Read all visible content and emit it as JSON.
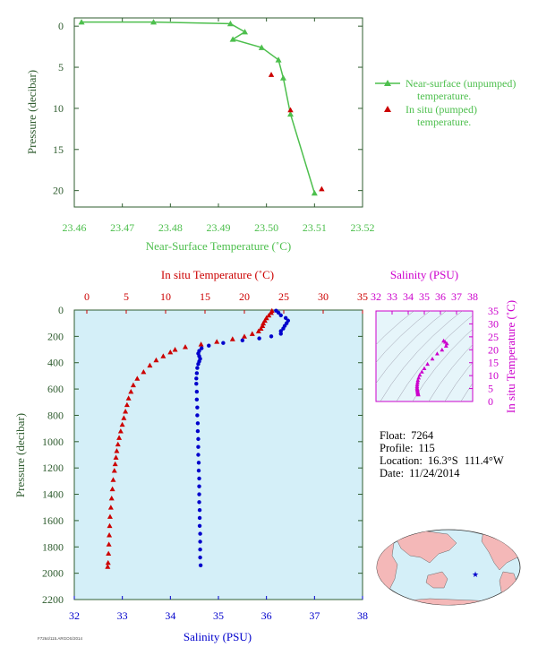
{
  "colors": {
    "green_axis": "#2f5c2f",
    "green_line": "#4dbf4d",
    "red": "#cc0000",
    "blue": "#0000cc",
    "magenta": "#cc00cc",
    "panel_bg": "#d4eff8",
    "land": "#f4b8b8"
  },
  "info": {
    "float_label": "Float:",
    "float_value": "7264",
    "profile_label": "Profile:",
    "profile_value": "115",
    "location_label": "Location:",
    "location_lat": "16.3°S",
    "location_lon": "111.4°W",
    "date_label": "Date:",
    "date_value": "11/24/2014",
    "footer_code": "F7264/115.ARGOS/2014"
  },
  "chart_data": [
    {
      "id": "near_surface",
      "type": "line",
      "xlabel": "Near-Surface Temperature (˚C)",
      "ylabel": "Pressure (decibar)",
      "xlim": [
        23.46,
        23.52
      ],
      "ylim": [
        22,
        -1
      ],
      "xticks": [
        "23.46",
        "23.47",
        "23.48",
        "23.49",
        "23.50",
        "23.51",
        "23.52"
      ],
      "yticks": [
        "0",
        "5",
        "10",
        "15",
        "20"
      ],
      "series": [
        {
          "name": "Near-surface (unpumped) temperature.",
          "name_line1": "Near-surface (unpumped)",
          "name_line2": "temperature.",
          "marker": "triangle-line",
          "x": [
            23.4615,
            23.4765,
            23.4925,
            23.4955,
            23.493,
            23.499,
            23.5025,
            23.5035,
            23.505,
            23.51
          ],
          "y": [
            -0.5,
            -0.5,
            -0.3,
            0.7,
            1.6,
            2.6,
            4.1,
            6.3,
            10.7,
            20.3
          ]
        },
        {
          "name": "In situ (pumped) temperature.",
          "name_line1": "In situ (pumped)",
          "name_line2": "temperature.",
          "marker": "triangle",
          "x": [
            23.501,
            23.505,
            23.5115
          ],
          "y": [
            5.9,
            10.2,
            19.8
          ]
        }
      ]
    },
    {
      "id": "main_profile",
      "type": "scatter",
      "title": "In situ Temperature (˚C)",
      "xlabel": "Salinity (PSU)",
      "ylabel": "Pressure (decibar)",
      "temp_xlim": [
        0,
        35
      ],
      "sal_xlim": [
        32,
        38
      ],
      "ylim": [
        2200,
        0
      ],
      "temp_ticks": [
        "0",
        "5",
        "10",
        "15",
        "20",
        "25",
        "30",
        "35"
      ],
      "sal_ticks": [
        "32",
        "33",
        "34",
        "35",
        "36",
        "37",
        "38"
      ],
      "pressure_ticks": [
        "0",
        "200",
        "400",
        "600",
        "800",
        "1000",
        "1200",
        "1400",
        "1600",
        "1800",
        "2000",
        "2200"
      ],
      "temperature_profile": {
        "pressure": [
          5,
          20,
          40,
          60,
          80,
          100,
          120,
          140,
          160,
          180,
          200,
          220,
          240,
          260,
          280,
          300,
          320,
          350,
          380,
          420,
          470,
          520,
          570,
          620,
          670,
          720,
          770,
          820,
          870,
          920,
          970,
          1020,
          1070,
          1120,
          1170,
          1220,
          1290,
          1360,
          1430,
          1500,
          1570,
          1640,
          1710,
          1780,
          1850,
          1920,
          1950
        ],
        "temperature": [
          23.5,
          23.4,
          23.1,
          22.8,
          22.6,
          22.4,
          22.3,
          22.1,
          21.8,
          21.0,
          20.0,
          18.5,
          16.5,
          14.5,
          12.5,
          11.2,
          10.6,
          9.7,
          8.8,
          8.0,
          7.2,
          6.4,
          5.9,
          5.6,
          5.3,
          5.1,
          4.9,
          4.7,
          4.5,
          4.3,
          4.1,
          3.95,
          3.8,
          3.7,
          3.6,
          3.5,
          3.35,
          3.25,
          3.15,
          3.05,
          2.95,
          2.9,
          2.85,
          2.8,
          2.75,
          2.7,
          2.65
        ]
      },
      "salinity_profile": {
        "pressure": [
          5,
          20,
          40,
          60,
          80,
          100,
          120,
          140,
          160,
          180,
          200,
          215,
          230,
          250,
          270,
          290,
          310,
          330,
          350,
          370,
          390,
          410,
          440,
          480,
          520,
          560,
          620,
          680,
          740,
          800,
          860,
          920,
          980,
          1040,
          1100,
          1160,
          1220,
          1280,
          1340,
          1400,
          1460,
          1520,
          1580,
          1640,
          1700,
          1760,
          1820,
          1880,
          1940
        ],
        "salinity": [
          36.2,
          36.25,
          36.3,
          36.4,
          36.45,
          36.42,
          36.38,
          36.35,
          36.3,
          36.3,
          36.1,
          35.85,
          35.5,
          35.1,
          34.8,
          34.65,
          34.6,
          34.58,
          34.6,
          34.62,
          34.6,
          34.58,
          34.56,
          34.55,
          34.54,
          34.54,
          34.55,
          34.55,
          34.56,
          34.56,
          34.57,
          34.57,
          34.58,
          34.58,
          34.58,
          34.59,
          34.59,
          34.6,
          34.6,
          34.6,
          34.6,
          34.61,
          34.61,
          34.61,
          34.62,
          34.62,
          34.62,
          34.62,
          34.63
        ]
      }
    },
    {
      "id": "ts_diagram",
      "type": "scatter",
      "title": "Salinity (PSU)",
      "ylabel": "In situ Temperature (˚C)",
      "xlim": [
        32,
        38
      ],
      "ylim": [
        0,
        35
      ],
      "xticks": [
        "32",
        "33",
        "34",
        "35",
        "36",
        "37",
        "38"
      ],
      "yticks": [
        "0",
        "5",
        "10",
        "15",
        "20",
        "25",
        "30",
        "35"
      ],
      "points": {
        "salinity": [
          36.2,
          36.3,
          36.4,
          36.35,
          36.1,
          35.8,
          35.5,
          35.2,
          35.0,
          34.85,
          34.72,
          34.65,
          34.6,
          34.58,
          34.56,
          34.55,
          34.55,
          34.56,
          34.57,
          34.58,
          34.59,
          34.6,
          34.61,
          34.62,
          34.63
        ],
        "temperature": [
          23.5,
          23.0,
          22.4,
          21.5,
          20.0,
          18.5,
          16.5,
          14.5,
          12.8,
          11.5,
          10.3,
          9.2,
          8.2,
          7.4,
          6.6,
          5.9,
          5.3,
          4.8,
          4.4,
          4.0,
          3.6,
          3.3,
          3.0,
          2.8,
          2.65
        ]
      }
    }
  ]
}
